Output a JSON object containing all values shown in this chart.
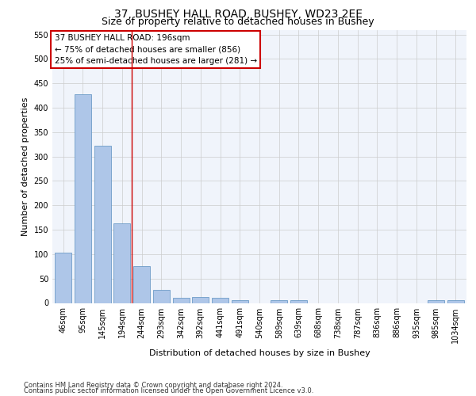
{
  "title_line1": "37, BUSHEY HALL ROAD, BUSHEY, WD23 2EE",
  "title_line2": "Size of property relative to detached houses in Bushey",
  "xlabel": "Distribution of detached houses by size in Bushey",
  "ylabel": "Number of detached properties",
  "footnote1": "Contains HM Land Registry data © Crown copyright and database right 2024.",
  "footnote2": "Contains public sector information licensed under the Open Government Licence v3.0.",
  "annotation_line1": "37 BUSHEY HALL ROAD: 196sqm",
  "annotation_line2": "← 75% of detached houses are smaller (856)",
  "annotation_line3": "25% of semi-detached houses are larger (281) →",
  "bar_labels": [
    "46sqm",
    "95sqm",
    "145sqm",
    "194sqm",
    "244sqm",
    "293sqm",
    "342sqm",
    "392sqm",
    "441sqm",
    "491sqm",
    "540sqm",
    "589sqm",
    "639sqm",
    "688sqm",
    "738sqm",
    "787sqm",
    "836sqm",
    "886sqm",
    "935sqm",
    "985sqm",
    "1034sqm"
  ],
  "bar_values": [
    103,
    428,
    322,
    163,
    76,
    26,
    11,
    12,
    11,
    6,
    0,
    5,
    5,
    0,
    0,
    0,
    0,
    0,
    0,
    5,
    5
  ],
  "bar_color": "#aec6e8",
  "bar_edge_color": "#5a8fc0",
  "reference_line_x": 3.5,
  "ylim": [
    0,
    560
  ],
  "yticks": [
    0,
    50,
    100,
    150,
    200,
    250,
    300,
    350,
    400,
    450,
    500,
    550
  ],
  "grid_color": "#cccccc",
  "bg_color": "#f0f4fb",
  "annotation_box_color": "#cc0000",
  "title_fontsize": 10,
  "subtitle_fontsize": 9,
  "axis_label_fontsize": 8,
  "tick_fontsize": 7,
  "footnote_fontsize": 6
}
